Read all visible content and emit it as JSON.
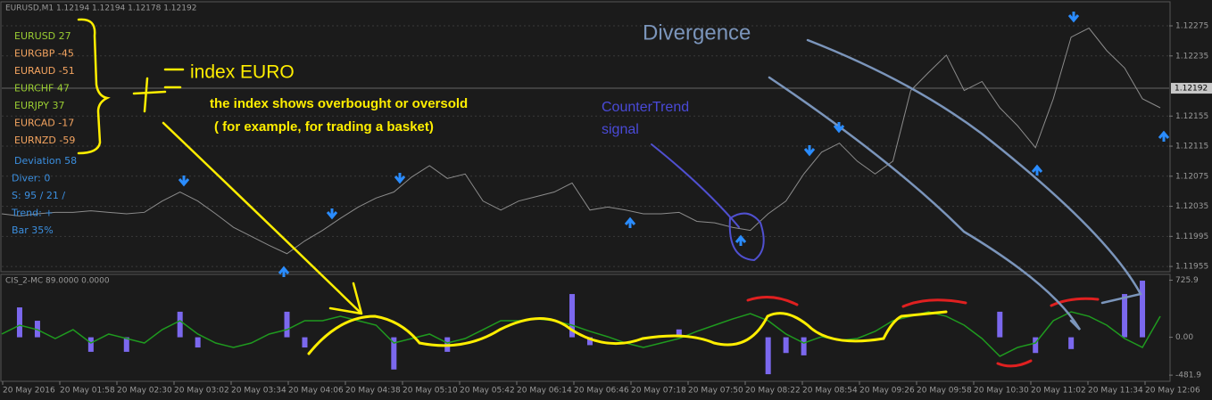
{
  "window": {
    "title": "EURUSD,M1  1.12194 1.12194 1.12178 1.12192"
  },
  "pairs": [
    {
      "label": "EURUSD 27",
      "color": "#9acd32"
    },
    {
      "label": "EURGBP -45",
      "color": "#f4a460"
    },
    {
      "label": "EURAUD -51",
      "color": "#f4a460"
    },
    {
      "label": "EURCHF 47",
      "color": "#9acd32"
    },
    {
      "label": "EURJPY 37",
      "color": "#9acd32"
    },
    {
      "label": "EURCAD -17",
      "color": "#f4a460"
    },
    {
      "label": "EURNZD -59",
      "color": "#f4a460"
    }
  ],
  "stats": [
    "Deviation 58",
    "Diver: 0",
    "S: 95 / 21 /",
    "Trend: +",
    "Bar 35%"
  ],
  "annotations": {
    "index": "index EURO",
    "line1": "the index shows overbought or oversold",
    "line2": "( for example, for trading a basket)",
    "counter1": "CounterTrend",
    "counter2": "signal",
    "divergence": "Divergence"
  },
  "price_chart": {
    "type": "line",
    "color": "#8c8c8c",
    "values": [
      1.12025,
      1.12022,
      1.12025,
      1.12027,
      1.12027,
      1.12029,
      1.12027,
      1.12025,
      1.12027,
      1.12042,
      1.12054,
      1.12042,
      1.12025,
      1.12007,
      1.11995,
      1.11983,
      1.11972,
      1.11989,
      1.12003,
      1.12019,
      1.12034,
      1.12046,
      1.12054,
      1.12074,
      1.12089,
      1.12072,
      1.12078,
      1.12042,
      1.1203,
      1.12042,
      1.12048,
      1.12054,
      1.12066,
      1.1203,
      1.12034,
      1.1203,
      1.12025,
      1.12025,
      1.12027,
      1.12015,
      1.12013,
      1.12007,
      1.12003,
      1.12025,
      1.12042,
      1.12078,
      1.12107,
      1.12119,
      1.12095,
      1.12078,
      1.12095,
      1.12189,
      1.12213,
      1.12236,
      1.12189,
      1.12201,
      1.12166,
      1.12142,
      1.12113,
      1.12178,
      1.1226,
      1.12272,
      1.12242,
      1.12219,
      1.12178,
      1.12166
    ],
    "ylim": [
      1.11948,
      1.12307
    ],
    "yticks": [
      1.12275,
      1.12235,
      1.12155,
      1.12115,
      1.12075,
      1.12035,
      1.11995,
      1.11955
    ],
    "current": 1.12192,
    "grid": true
  },
  "indicator": {
    "type": "bar-line",
    "label": "CIS_2-MC 89.0000 0.0000",
    "series": [
      {
        "kind": "bar",
        "color": "#7b68ee",
        "values": [
          null,
          380,
          210,
          null,
          null,
          -185,
          null,
          -185,
          null,
          null,
          325,
          -130,
          null,
          null,
          null,
          null,
          325,
          -130,
          null,
          null,
          null,
          null,
          -410,
          null,
          null,
          -185,
          null,
          null,
          null,
          null,
          null,
          null,
          550,
          -100,
          null,
          null,
          null,
          null,
          100,
          null,
          null,
          null,
          null,
          -470,
          -200,
          -230,
          null,
          null,
          null,
          null,
          null,
          null,
          null,
          null,
          null,
          null,
          325,
          null,
          -200,
          null,
          -150,
          null,
          null,
          550,
          720,
          null
        ]
      },
      {
        "kind": "line",
        "color": "#1f9a1f",
        "values": [
          41,
          154,
          97,
          -16,
          97,
          -73,
          41,
          -16,
          -73,
          97,
          211,
          41,
          -73,
          -129,
          -73,
          41,
          97,
          211,
          211,
          267,
          211,
          154,
          -73,
          -16,
          41,
          -73,
          -16,
          97,
          211,
          211,
          233,
          211,
          154,
          75,
          7,
          -73,
          -129,
          -73,
          -16,
          75,
          154,
          233,
          301,
          211,
          41,
          -73,
          7,
          -39,
          -16,
          75,
          211,
          267,
          324,
          267,
          154,
          -16,
          -242,
          -129,
          -73,
          211,
          324,
          267,
          154,
          -16,
          -129,
          267
        ]
      }
    ],
    "ylim": [
      -560,
      800
    ],
    "yticks": [
      725.9,
      {
        "value": 0,
        "label": "0.00"
      },
      -481.9
    ]
  },
  "xlabels": [
    "20 May 2016",
    "20 May 01:58",
    "20 May 02:30",
    "20 May 03:02",
    "20 May 03:34",
    "20 May 04:06",
    "20 May 04:38",
    "20 May 05:10",
    "20 May 05:42",
    "20 May 06:14",
    "20 May 06:46",
    "20 May 07:18",
    "20 May 07:50",
    "20 May 08:22",
    "20 May 08:54",
    "20 May 09:26",
    "20 May 09:58",
    "20 May 10:30",
    "20 May 11:02",
    "20 May 11:34",
    "20 May 12:06"
  ]
}
